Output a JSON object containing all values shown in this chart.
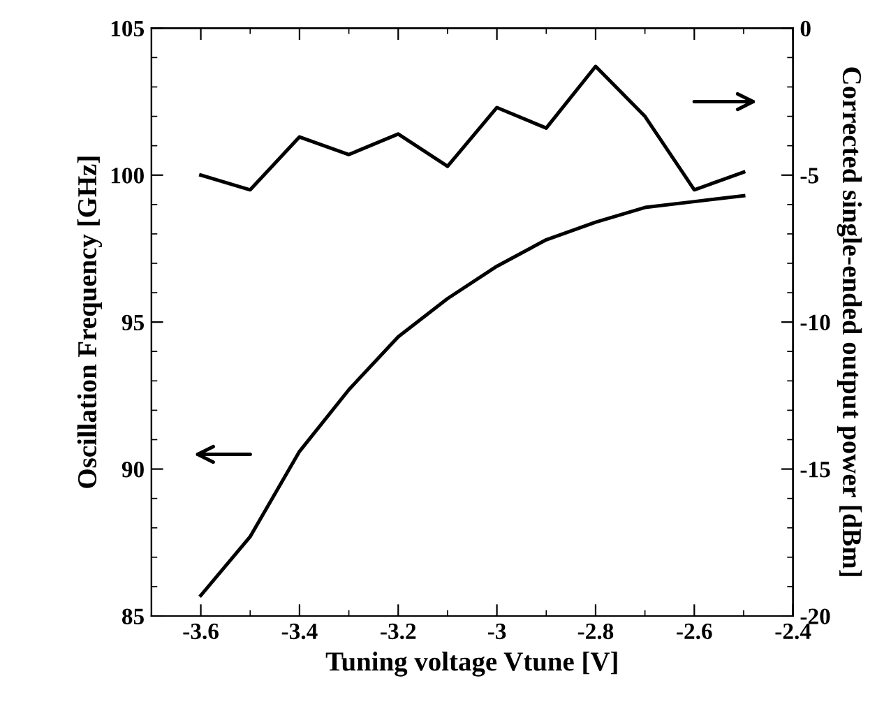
{
  "chart_data": {
    "type": "line",
    "xlabel": "Tuning voltage Vtune [V]",
    "ylabel": "Oscillation Frequency [GHz]",
    "y2label": "Corrected single-ended output power [dBm]",
    "xlim": [
      -3.7,
      -2.4
    ],
    "xticks": [
      -3.6,
      -3.4,
      -3.2,
      -3,
      -2.8,
      -2.6,
      -2.4
    ],
    "ylim": [
      85,
      105
    ],
    "yticks": [
      85,
      90,
      95,
      100,
      105
    ],
    "y2lim": [
      -20,
      0
    ],
    "y2ticks": [
      -20,
      -15,
      -10,
      -5,
      0
    ],
    "grid": false,
    "legend": false,
    "marker": "none",
    "line_style": "solid",
    "x": [
      -3.6,
      -3.5,
      -3.4,
      -3.3,
      -3.2,
      -3.1,
      -3.0,
      -2.9,
      -2.8,
      -2.7,
      -2.6,
      -2.5
    ],
    "series": [
      {
        "color": "#000000",
        "values": [
          85.7,
          87.7,
          90.6,
          92.7,
          94.5,
          95.8,
          96.9,
          97.8,
          98.4,
          98.9,
          99.1,
          99.3
        ]
      },
      {
        "color": "#000000",
        "axis": "y2",
        "values": [
          -5.0,
          -5.5,
          -3.7,
          -4.3,
          -3.6,
          -4.7,
          -2.7,
          -3.4,
          -1.3,
          -3.0,
          -5.5,
          -4.9
        ]
      }
    ]
  }
}
